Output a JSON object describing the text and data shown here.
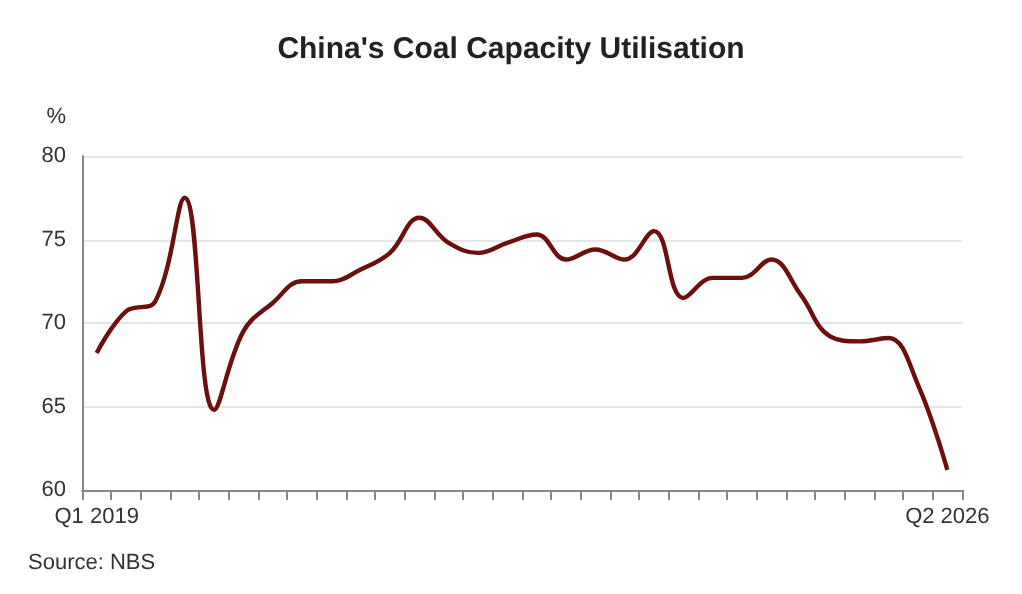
{
  "chart_data": {
    "type": "line",
    "title": "China's Coal Capacity Utilisation",
    "ylabel": "%",
    "annotations": [
      "Source: NBS"
    ],
    "categories": [
      "Q1 2019",
      null,
      null,
      null,
      null,
      null,
      null,
      null,
      null,
      null,
      null,
      null,
      null,
      null,
      null,
      null,
      null,
      null,
      null,
      null,
      null,
      null,
      null,
      null,
      null,
      null,
      null,
      null,
      null,
      "Q2 2026"
    ],
    "series": [
      {
        "color": "#6b0f0f",
        "values": [
          68.2,
          70.7,
          71.3,
          77.5,
          64.8,
          69.5,
          71.2,
          72.5,
          72.5,
          73.2,
          74.2,
          76.3,
          74.8,
          74.2,
          74.8,
          75.3,
          73.8,
          74.4,
          73.8,
          75.5,
          71.5,
          72.7,
          72.7,
          73.8,
          71.7,
          69.2,
          68.9,
          69.1,
          66.3,
          61.2
        ]
      }
    ],
    "ylim": [
      60,
      80
    ],
    "yticks": [
      60,
      65,
      70,
      75,
      80
    ],
    "grid": "y",
    "marker": "none",
    "line_style": "solid"
  }
}
